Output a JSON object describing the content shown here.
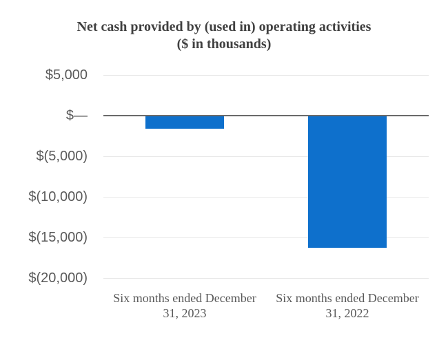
{
  "page": {
    "background_color": "#ffffff"
  },
  "chart_data": {
    "type": "bar",
    "title": "Net cash provided by (used in) operating activities",
    "subtitle": "($ in thousands)",
    "categories": [
      "Six months ended December 31, 2023",
      "Six months ended December 31, 2022"
    ],
    "values": [
      -1600,
      -16250
    ],
    "ylim": [
      -20000,
      5000
    ],
    "yticks": [
      {
        "value": 5000,
        "label": "$5,000"
      },
      {
        "value": 0,
        "label": "$—"
      },
      {
        "value": -5000,
        "label": "$(5,000)"
      },
      {
        "value": -10000,
        "label": "$(10,000)"
      },
      {
        "value": -15000,
        "label": "$(15,000)"
      },
      {
        "value": -20000,
        "label": "$(20,000)"
      }
    ],
    "grid": true,
    "legend": false,
    "bar_color": "#0e70cc",
    "gridline_color": "#e8e8e8",
    "zero_line_color": "#6a6a6a",
    "title_color": "#404040",
    "axis_label_color": "#595959"
  }
}
